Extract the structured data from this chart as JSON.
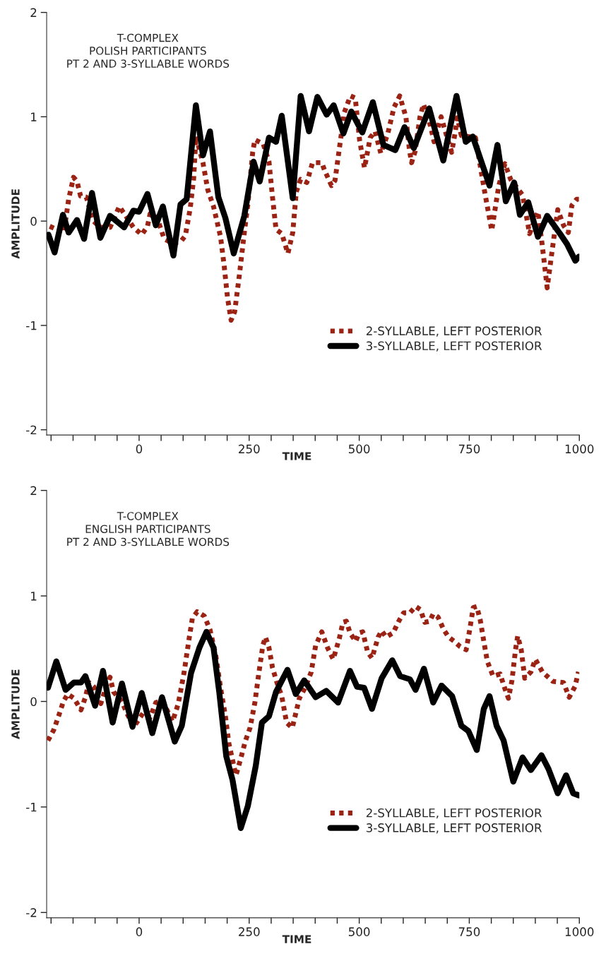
{
  "chart_data": [
    {
      "type": "line",
      "title": "T-COMPLEX\nPOLISH PARTICIPANTS\nPT 2 AND 3-SYLLABLE WORDS",
      "xlabel": "TIME",
      "ylabel": "AMPLITUDE",
      "xlim": [
        -210,
        1000
      ],
      "ylim": [
        -2.05,
        2
      ],
      "yticks": [
        -2,
        -1,
        0,
        1,
        2
      ],
      "xticks": [
        {
          "value": -200,
          "label": null
        },
        {
          "value": -150,
          "label": null
        },
        {
          "value": -100,
          "label": null
        },
        {
          "value": -50,
          "label": null
        },
        0,
        {
          "value": 50,
          "label": null
        },
        {
          "value": 100,
          "label": null
        },
        {
          "value": 150,
          "label": null
        },
        {
          "value": 200,
          "label": null
        },
        250,
        {
          "value": 300,
          "label": null
        },
        {
          "value": 350,
          "label": null
        },
        {
          "value": 400,
          "label": null
        },
        {
          "value": 450,
          "label": null
        },
        500,
        {
          "value": 550,
          "label": null
        },
        {
          "value": 600,
          "label": null
        },
        {
          "value": 650,
          "label": null
        },
        {
          "value": 700,
          "label": null
        },
        750,
        {
          "value": 800,
          "label": null
        },
        {
          "value": 850,
          "label": null
        },
        {
          "value": 900,
          "label": null
        },
        {
          "value": 950,
          "label": null
        },
        1000
      ],
      "grid": false,
      "legend": "bottom right",
      "series": [
        {
          "name": "2-SYLLABLE, LEFT POSTERIOR",
          "color": "#9b2314",
          "line_style": "dotted",
          "x": [
            -203,
            -187,
            -171,
            -160,
            -149,
            -141,
            -133,
            -120,
            -104,
            -88,
            -66,
            -45,
            -32,
            -13,
            6,
            19,
            25,
            41,
            57,
            75,
            94,
            105,
            116,
            124,
            129,
            145,
            156,
            169,
            185,
            193,
            201,
            209,
            217,
            228,
            239,
            247,
            258,
            263,
            282,
            295,
            303,
            311,
            324,
            338,
            349,
            357,
            367,
            381,
            394,
            415,
            421,
            437,
            445,
            456,
            466,
            480,
            491,
            501,
            512,
            525,
            536,
            549,
            565,
            579,
            592,
            606,
            614,
            619,
            627,
            638,
            646,
            662,
            670,
            686,
            697,
            710,
            718,
            723,
            732,
            764,
            785,
            801,
            817,
            831,
            844,
            871,
            887,
            906,
            916,
            927,
            938,
            951,
            964,
            975,
            983,
            994,
            999
          ],
          "values": [
            -0.05,
            -0.08,
            -0.11,
            0.21,
            0.42,
            0.38,
            0.24,
            0.23,
            0.0,
            -0.06,
            -0.06,
            0.14,
            0.06,
            -0.06,
            -0.13,
            -0.05,
            0.07,
            0.03,
            -0.17,
            -0.21,
            -0.2,
            -0.14,
            0.12,
            0.41,
            0.81,
            0.56,
            0.3,
            0.14,
            -0.15,
            -0.42,
            -0.74,
            -0.95,
            -0.87,
            -0.51,
            -0.11,
            0.16,
            0.66,
            0.78,
            0.74,
            0.57,
            0.23,
            -0.08,
            -0.12,
            -0.31,
            -0.11,
            0.28,
            0.4,
            0.37,
            0.56,
            0.56,
            0.49,
            0.34,
            0.39,
            0.73,
            1.04,
            1.2,
            1.18,
            0.77,
            0.51,
            0.8,
            0.86,
            0.65,
            0.84,
            1.09,
            1.2,
            1.0,
            0.68,
            0.56,
            0.67,
            1.0,
            1.12,
            0.91,
            0.76,
            1.0,
            0.84,
            0.66,
            0.85,
            0.99,
            0.82,
            0.8,
            0.28,
            -0.09,
            0.34,
            0.55,
            0.4,
            0.25,
            -0.12,
            0.09,
            -0.24,
            -0.64,
            -0.29,
            0.11,
            -0.04,
            -0.11,
            0.15,
            0.21,
            0.21
          ]
        },
        {
          "name": "3-SYLLABLE, LEFT POSTERIOR",
          "color": "#000000",
          "line_style": "solid",
          "x": [
            -206,
            -192,
            -173,
            -160,
            -141,
            -125,
            -107,
            -88,
            -66,
            -34,
            -13,
            0,
            19,
            38,
            54,
            78,
            94,
            108,
            129,
            145,
            161,
            180,
            196,
            215,
            239,
            260,
            274,
            295,
            311,
            324,
            349,
            367,
            386,
            405,
            426,
            442,
            464,
            482,
            507,
            531,
            555,
            582,
            603,
            624,
            659,
            691,
            721,
            742,
            758,
            796,
            814,
            833,
            852,
            865,
            884,
            906,
            927,
            956,
            972,
            991,
            999
          ],
          "values": [
            -0.13,
            -0.3,
            0.06,
            -0.11,
            0.01,
            -0.17,
            0.27,
            -0.16,
            0.05,
            -0.06,
            0.1,
            0.09,
            0.26,
            -0.04,
            0.14,
            -0.33,
            0.16,
            0.21,
            1.11,
            0.63,
            0.86,
            0.23,
            0.03,
            -0.31,
            0.05,
            0.57,
            0.38,
            0.8,
            0.76,
            1.01,
            0.22,
            1.2,
            0.86,
            1.19,
            1.02,
            1.11,
            0.84,
            1.05,
            0.85,
            1.14,
            0.73,
            0.68,
            0.9,
            0.7,
            1.08,
            0.58,
            1.2,
            0.76,
            0.81,
            0.34,
            0.73,
            0.19,
            0.37,
            0.06,
            0.18,
            -0.15,
            0.05,
            -0.12,
            -0.22,
            -0.38,
            -0.34
          ]
        }
      ]
    },
    {
      "type": "line",
      "title": "T-COMPLEX\nENGLISH PARTICIPANTS\nPT 2 AND 3-SYLLABLE WORDS",
      "xlabel": "TIME",
      "ylabel": "AMPLITUDE",
      "xlim": [
        -210,
        1000
      ],
      "ylim": [
        -2.05,
        2
      ],
      "yticks": [
        -2,
        -1,
        0,
        1,
        2
      ],
      "xticks": [
        {
          "value": -200,
          "label": null
        },
        {
          "value": -150,
          "label": null
        },
        {
          "value": -100,
          "label": null
        },
        {
          "value": -50,
          "label": null
        },
        0,
        {
          "value": 50,
          "label": null
        },
        {
          "value": 100,
          "label": null
        },
        {
          "value": 150,
          "label": null
        },
        {
          "value": 200,
          "label": null
        },
        250,
        {
          "value": 300,
          "label": null
        },
        {
          "value": 350,
          "label": null
        },
        {
          "value": 400,
          "label": null
        },
        {
          "value": 450,
          "label": null
        },
        500,
        {
          "value": 550,
          "label": null
        },
        {
          "value": 600,
          "label": null
        },
        {
          "value": 650,
          "label": null
        },
        {
          "value": 700,
          "label": null
        },
        750,
        {
          "value": 800,
          "label": null
        },
        {
          "value": 850,
          "label": null
        },
        {
          "value": 900,
          "label": null
        },
        {
          "value": 950,
          "label": null
        },
        1000
      ],
      "grid": false,
      "legend": "bottom right",
      "series": [
        {
          "name": "2-SYLLABLE, LEFT POSTERIOR",
          "color": "#9b2314",
          "line_style": "dotted",
          "x": [
            -207,
            -194,
            -183,
            -172,
            -162,
            -148,
            -132,
            -122,
            -114,
            -103,
            -87,
            -74,
            -66,
            -58,
            -39,
            -28,
            -12,
            1,
            9,
            25,
            38,
            54,
            76,
            89,
            102,
            113,
            121,
            132,
            148,
            161,
            174,
            185,
            196,
            204,
            220,
            231,
            241,
            252,
            263,
            271,
            281,
            287,
            295,
            303,
            313,
            324,
            335,
            348,
            356,
            364,
            377,
            391,
            401,
            415,
            428,
            441,
            455,
            463,
            471,
            479,
            492,
            500,
            508,
            519,
            529,
            543,
            551,
            561,
            577,
            591,
            601,
            615,
            628,
            639,
            649,
            660,
            668,
            679,
            692,
            703,
            716,
            729,
            743,
            751,
            759,
            767,
            775,
            783,
            791,
            804,
            820,
            831,
            839,
            847,
            855,
            860,
            868,
            876,
            890,
            900,
            916,
            940,
            964,
            977,
            990,
            998
          ],
          "values": [
            -0.37,
            -0.27,
            -0.14,
            0.0,
            0.07,
            0.03,
            -0.08,
            0.04,
            0.18,
            0.14,
            -0.02,
            0.15,
            0.23,
            0.09,
            0.0,
            -0.11,
            -0.24,
            -0.16,
            -0.11,
            -0.15,
            -0.01,
            0.0,
            -0.19,
            -0.02,
            0.27,
            0.58,
            0.79,
            0.85,
            0.81,
            0.68,
            0.44,
            0.13,
            -0.14,
            -0.4,
            -0.7,
            -0.54,
            -0.38,
            -0.25,
            -0.01,
            0.24,
            0.53,
            0.61,
            0.51,
            0.32,
            0.18,
            0.05,
            -0.2,
            -0.25,
            -0.11,
            0.03,
            0.13,
            0.28,
            0.53,
            0.66,
            0.51,
            0.4,
            0.6,
            0.75,
            0.76,
            0.65,
            0.57,
            0.65,
            0.66,
            0.47,
            0.41,
            0.61,
            0.67,
            0.61,
            0.65,
            0.77,
            0.84,
            0.84,
            0.9,
            0.87,
            0.75,
            0.76,
            0.83,
            0.8,
            0.68,
            0.61,
            0.57,
            0.52,
            0.49,
            0.68,
            0.89,
            0.9,
            0.77,
            0.57,
            0.38,
            0.24,
            0.26,
            0.12,
            0.03,
            0.2,
            0.49,
            0.62,
            0.49,
            0.22,
            0.28,
            0.4,
            0.28,
            0.19,
            0.18,
            0.04,
            0.14,
            0.28
          ]
        },
        {
          "name": "3-SYLLABLE, LEFT POSTERIOR",
          "color": "#000000",
          "line_style": "solid",
          "x": [
            -207,
            -188,
            -167,
            -148,
            -132,
            -122,
            -100,
            -82,
            -60,
            -39,
            -15,
            6,
            30,
            52,
            81,
            97,
            118,
            137,
            153,
            169,
            182,
            198,
            212,
            231,
            247,
            265,
            279,
            295,
            311,
            337,
            356,
            375,
            401,
            425,
            452,
            479,
            495,
            511,
            529,
            551,
            575,
            593,
            615,
            628,
            647,
            668,
            687,
            711,
            732,
            748,
            767,
            783,
            796,
            812,
            828,
            850,
            871,
            890,
            914,
            930,
            951,
            970,
            986,
            999
          ],
          "values": [
            0.13,
            0.38,
            0.11,
            0.18,
            0.18,
            0.24,
            -0.04,
            0.29,
            -0.2,
            0.17,
            -0.24,
            0.08,
            -0.3,
            0.04,
            -0.38,
            -0.23,
            0.27,
            0.51,
            0.66,
            0.51,
            0.09,
            -0.52,
            -0.74,
            -1.2,
            -0.99,
            -0.61,
            -0.2,
            -0.14,
            0.09,
            0.3,
            0.07,
            0.2,
            0.04,
            0.1,
            -0.01,
            0.29,
            0.14,
            0.13,
            -0.07,
            0.22,
            0.39,
            0.24,
            0.21,
            0.11,
            0.31,
            -0.01,
            0.15,
            0.05,
            -0.23,
            -0.28,
            -0.46,
            -0.07,
            0.05,
            -0.23,
            -0.37,
            -0.76,
            -0.53,
            -0.65,
            -0.51,
            -0.64,
            -0.87,
            -0.7,
            -0.87,
            -0.89
          ]
        }
      ]
    }
  ]
}
